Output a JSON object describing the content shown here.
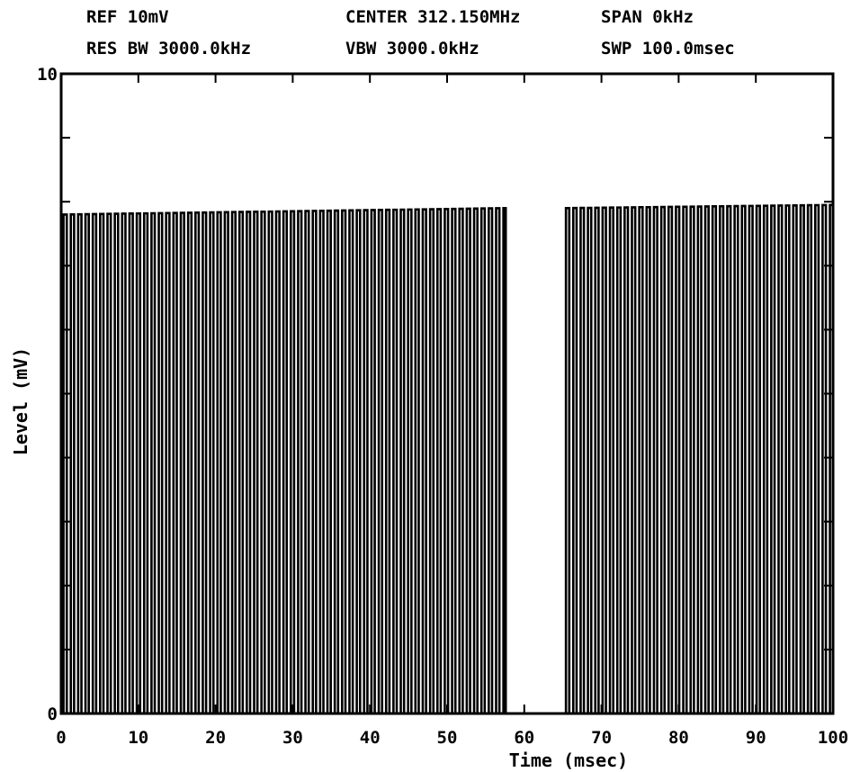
{
  "header": {
    "ref": "REF 10mV",
    "center": "CENTER 312.150MHz",
    "span": "SPAN 0kHz",
    "res_bw": "RES BW 3000.0kHz",
    "vbw": "VBW 3000.0kHz",
    "swp": "SWP 100.0msec"
  },
  "chart_data": {
    "type": "line",
    "title": "",
    "xlabel": "Time (msec)",
    "ylabel": "Level (mV)",
    "xlim": [
      0,
      100
    ],
    "ylim": [
      0,
      10
    ],
    "x_ticks": [
      "0",
      "10",
      "20",
      "30",
      "40",
      "50",
      "60",
      "70",
      "80",
      "90",
      "100"
    ],
    "y_ticks": [
      "0",
      "10"
    ],
    "grid": false,
    "series": [
      {
        "style": "pulse train (OOK), low level 0 mV",
        "pulse_period_msec": 0.95,
        "segments": [
          {
            "x_start": 0.3,
            "x_end": 57.6,
            "high_level_start": 7.8,
            "high_level_end": 7.9
          },
          {
            "x_start": 65.4,
            "x_end": 100,
            "high_level_start": 7.9,
            "high_level_end": 7.95
          }
        ],
        "gap": [
          57.6,
          65.4
        ]
      }
    ],
    "colors": {
      "trace": "#000000",
      "background": "#ffffff"
    }
  }
}
